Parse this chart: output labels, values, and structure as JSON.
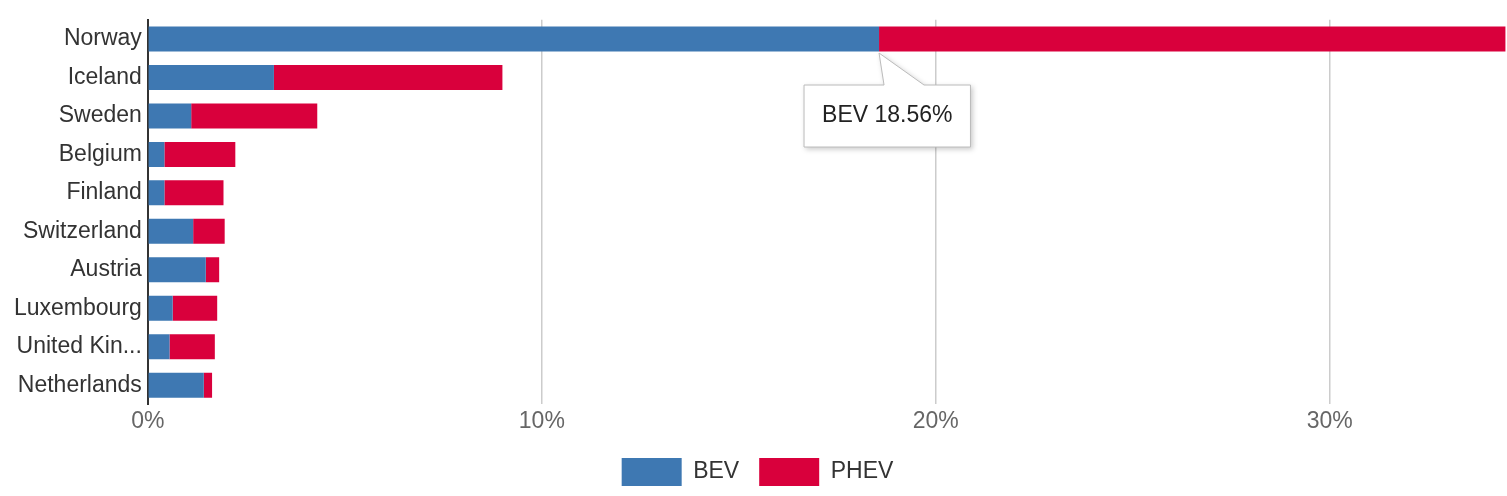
{
  "chart_data": {
    "type": "bar",
    "orientation": "horizontal",
    "stacked": true,
    "categories": [
      "Norway",
      "Iceland",
      "Sweden",
      "Belgium",
      "Finland",
      "Switzerland",
      "Austria",
      "Luxembourg",
      "United Kin...",
      "Netherlands"
    ],
    "series": [
      {
        "name": "BEV",
        "color": "#3e78b2",
        "values": [
          18.56,
          3.2,
          1.1,
          0.42,
          0.42,
          1.15,
          1.47,
          0.63,
          0.55,
          1.42
        ]
      },
      {
        "name": "PHEV",
        "color": "#d9003c",
        "values": [
          15.9,
          5.8,
          3.2,
          1.8,
          1.5,
          0.8,
          0.34,
          1.13,
          1.15,
          0.21
        ]
      }
    ],
    "xlim": [
      0,
      34.5
    ],
    "xticks": [
      {
        "value": 0,
        "label": "0%"
      },
      {
        "value": 10,
        "label": "10%"
      },
      {
        "value": 20,
        "label": "20%"
      },
      {
        "value": 30,
        "label": "30%"
      }
    ],
    "grid": "x",
    "legend": "bottom",
    "annotations": [
      {
        "text": "BEV 18.56%",
        "x": 18.56,
        "y": "Norway"
      }
    ]
  }
}
